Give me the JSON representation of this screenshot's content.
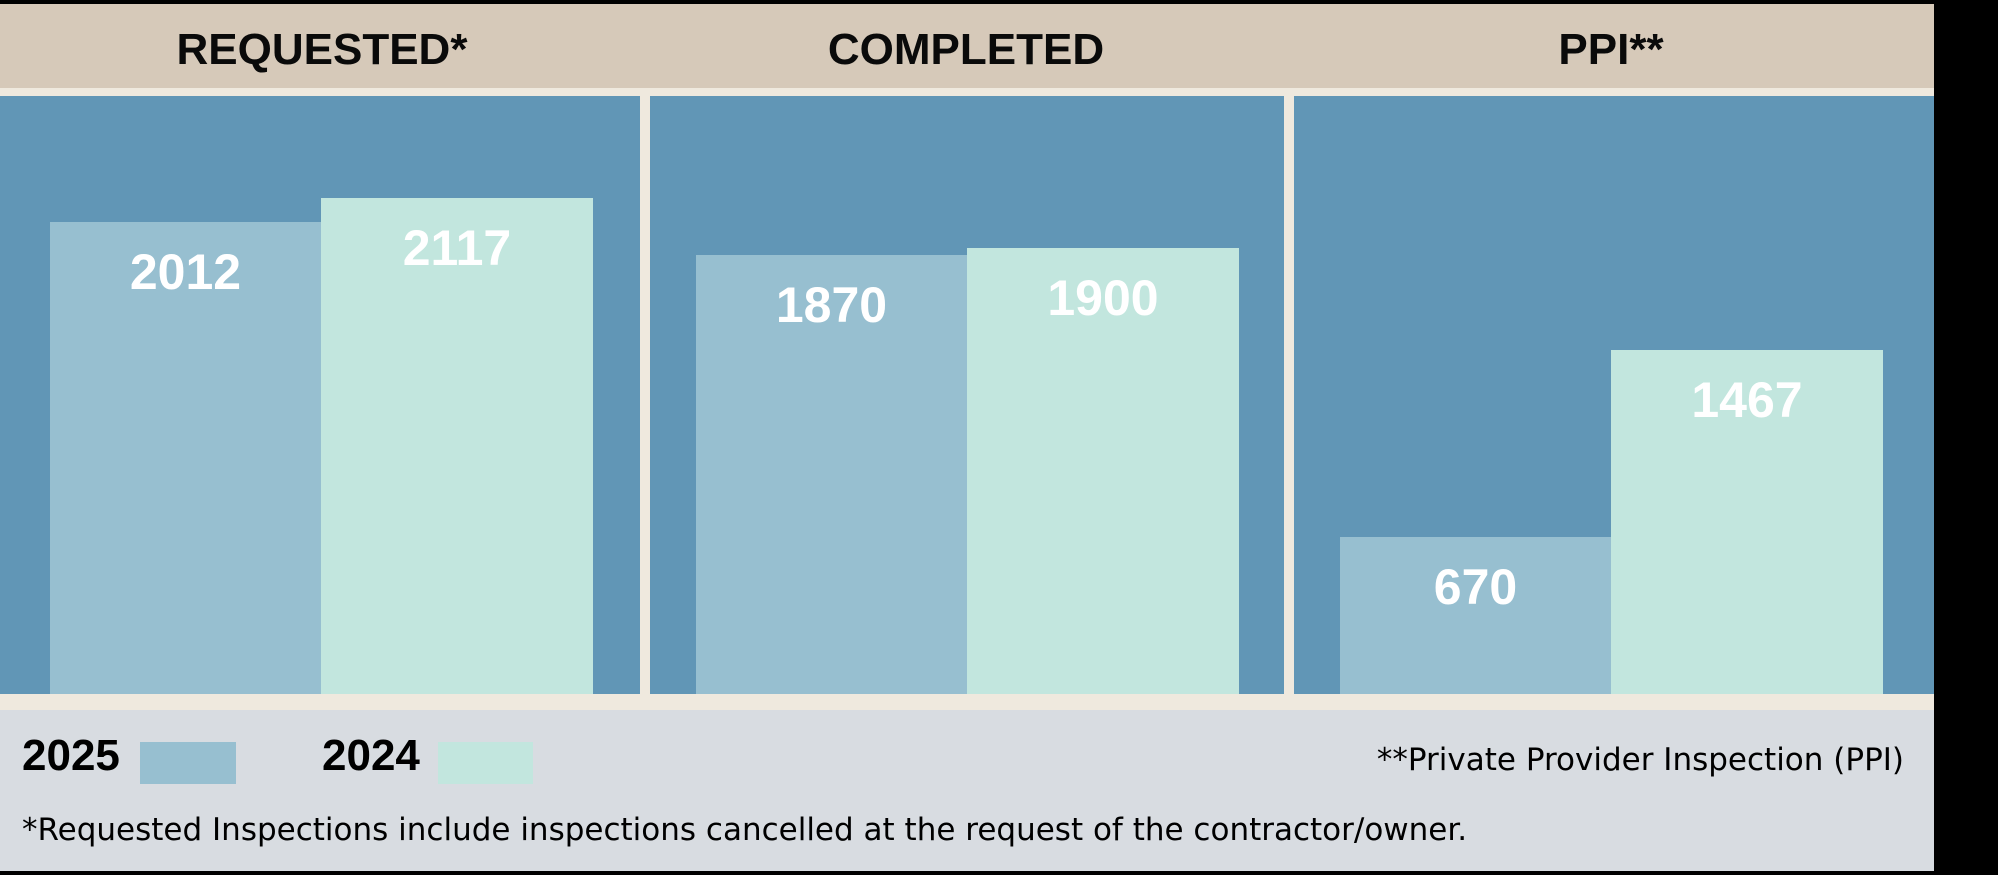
{
  "colors": {
    "header": "#d6c9b9",
    "panel": "#6196b6",
    "series_2025": "#97bfd0",
    "series_2024": "#c2e6de",
    "footer": "#d8dce1"
  },
  "chart_data": {
    "type": "bar",
    "categories": [
      "REQUESTED*",
      "COMPLETED",
      "PPI**"
    ],
    "series": [
      {
        "name": "2025",
        "values": [
          2012,
          1870,
          670
        ]
      },
      {
        "name": "2024",
        "values": [
          2117,
          1900,
          1467
        ]
      }
    ],
    "ylim": [
      0,
      2550
    ],
    "grid": false,
    "legend": "bottom-left"
  },
  "legend": {
    "items": [
      {
        "label": "2025"
      },
      {
        "label": "2024"
      }
    ]
  },
  "notes": {
    "ppi": "**Private Provider Inspection (PPI)",
    "requested": "*Requested Inspections include inspections cancelled at the request of the contractor/owner."
  }
}
